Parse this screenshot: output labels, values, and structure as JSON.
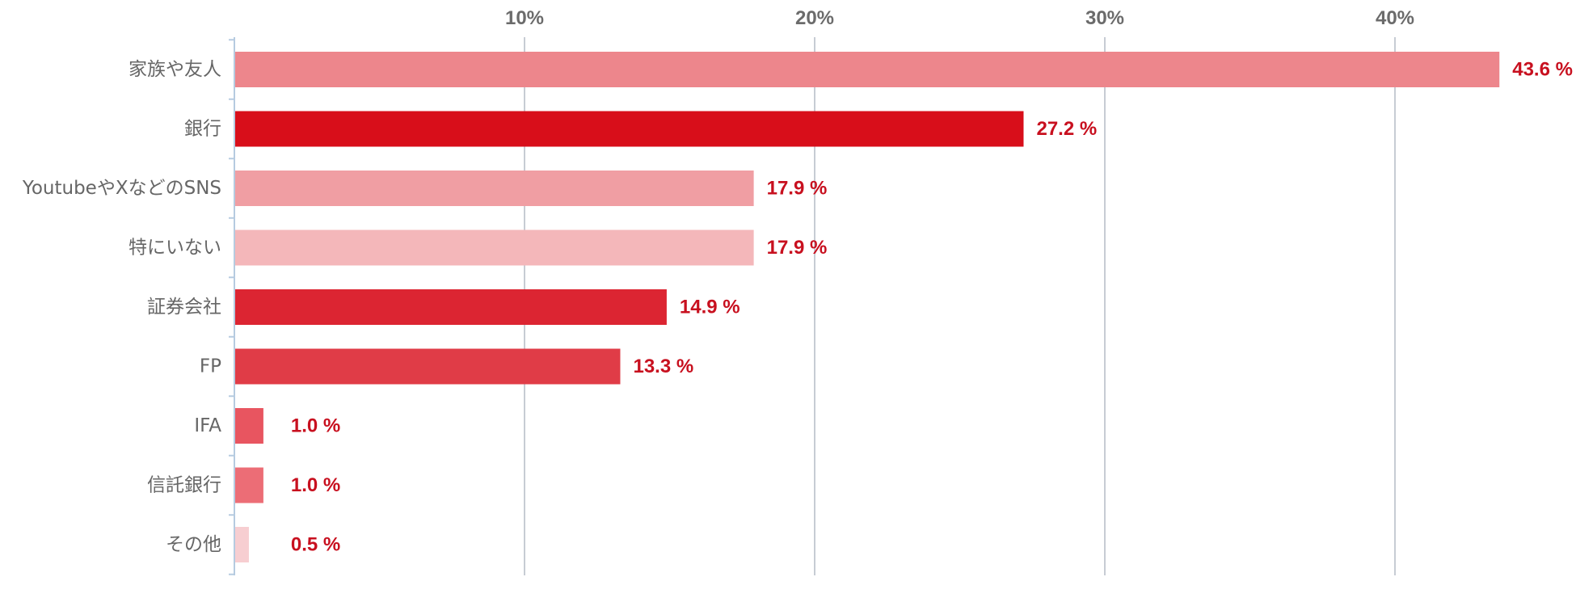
{
  "chart_data": {
    "type": "bar",
    "orientation": "horizontal",
    "categories": [
      "家族や友人",
      "銀行",
      "YoutubeやXなどのSNS",
      "特にいない",
      "証券会社",
      "FP",
      "IFA",
      "信託銀行",
      "その他"
    ],
    "values": [
      43.6,
      27.2,
      17.9,
      17.9,
      14.9,
      13.3,
      1.0,
      1.0,
      0.5
    ],
    "value_labels": [
      "43.6 %",
      "27.2 %",
      "17.9 %",
      "17.9 %",
      "14.9 %",
      "13.3 %",
      "1.0 %",
      "1.0 %",
      "0.5 %"
    ],
    "bar_colors": [
      "#ed868c",
      "#d80e1a",
      "#f09ea3",
      "#f4b7ba",
      "#dc2532",
      "#e03c47",
      "#e85560",
      "#ec6d76",
      "#f7ced1"
    ],
    "title": "",
    "xlabel": "",
    "ylabel": "",
    "xlim": [
      0,
      45
    ],
    "x_ticks": [
      10,
      20,
      30,
      40
    ],
    "x_tick_labels": [
      "10%",
      "20%",
      "30%",
      "40%"
    ],
    "x_axis_position": "top",
    "grid": true,
    "legend": "none"
  },
  "colors": {
    "value_text": "#c8101f",
    "category_text": "#666666",
    "tick_text": "#6b6b6b",
    "gridline": "#b9c0ca",
    "axis": "#b6cbe0"
  }
}
